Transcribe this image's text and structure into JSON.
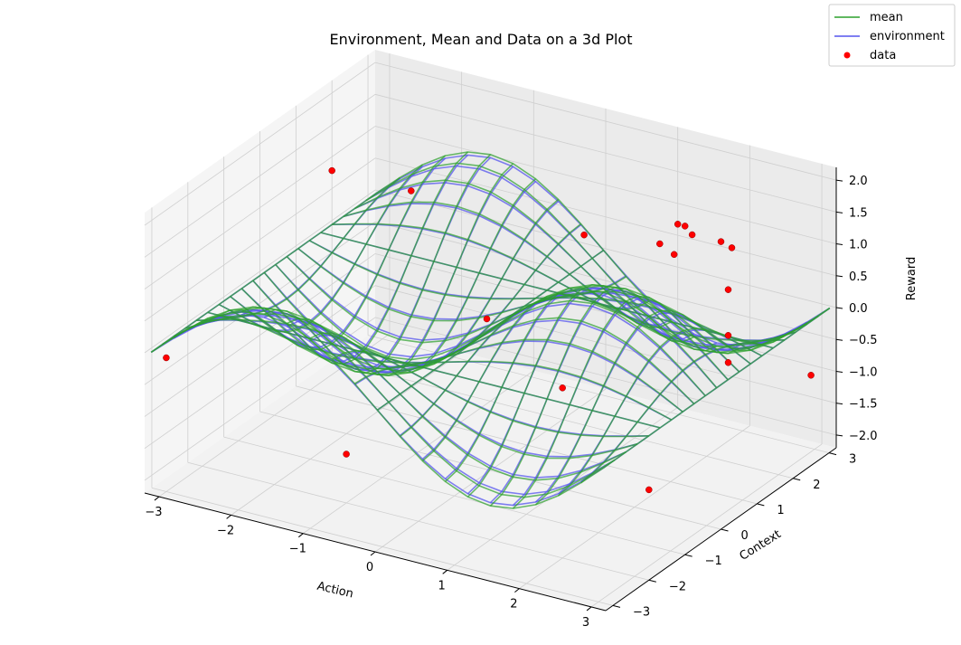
{
  "chart_data": {
    "type": "surface3d",
    "title": "Environment, Mean and Data on a 3d Plot",
    "xlabel": "Action",
    "ylabel": "Context",
    "zlabel": "Reward",
    "xlim": [
      -3.2,
      3.2
    ],
    "ylim": [
      -3.2,
      3.2
    ],
    "zlim": [
      -2.2,
      2.2
    ],
    "xticks": [
      -3,
      -2,
      -1,
      0,
      1,
      2,
      3
    ],
    "yticks": [
      -3,
      -2,
      -1,
      0,
      1,
      2,
      3
    ],
    "zticks": [
      -2.0,
      -1.5,
      -1.0,
      -0.5,
      0.0,
      0.5,
      1.0,
      1.5,
      2.0
    ],
    "grid": true,
    "legend_position": "top-right",
    "surface_domain": [
      -3.14,
      3.14
    ],
    "surface_resolution": 20,
    "series": [
      {
        "name": "mean",
        "kind": "wireframe",
        "color": "#2ca02c"
      },
      {
        "name": "environment",
        "kind": "wireframe",
        "color": "#5555ee"
      },
      {
        "name": "data",
        "kind": "scatter",
        "color": "#ff0000",
        "points": [
          {
            "x": -3.0,
            "y": -3.0,
            "z": -0.1
          },
          {
            "x": -3.0,
            "y": 1.6,
            "z": 1.0
          },
          {
            "x": -1.9,
            "y": 1.6,
            "z": 1.0
          },
          {
            "x": -0.6,
            "y": -2.8,
            "z": -1.0
          },
          {
            "x": -0.2,
            "y": 0.3,
            "z": 0.0
          },
          {
            "x": 0.5,
            "y": 1.6,
            "z": 1.0
          },
          {
            "x": 1.2,
            "y": -0.4,
            "z": -0.4
          },
          {
            "x": 1.3,
            "y": 2.6,
            "z": 1.0
          },
          {
            "x": 1.4,
            "y": 2.6,
            "z": 1.0
          },
          {
            "x": 1.4,
            "y": 1.9,
            "z": 1.0
          },
          {
            "x": 1.6,
            "y": 2.4,
            "z": 1.0
          },
          {
            "x": 1.7,
            "y": 1.7,
            "z": 1.0
          },
          {
            "x": 1.9,
            "y": 2.6,
            "z": 0.9
          },
          {
            "x": 2.1,
            "y": 2.5,
            "z": 0.9
          },
          {
            "x": 2.3,
            "y": 2.0,
            "z": 0.5
          },
          {
            "x": 2.5,
            "y": 1.6,
            "z": 0.0
          },
          {
            "x": 2.8,
            "y": 1.0,
            "z": -0.1
          },
          {
            "x": 3.0,
            "y": -1.6,
            "z": -1.0
          },
          {
            "x": 3.0,
            "y": 2.9,
            "z": -1.0
          }
        ]
      }
    ]
  }
}
